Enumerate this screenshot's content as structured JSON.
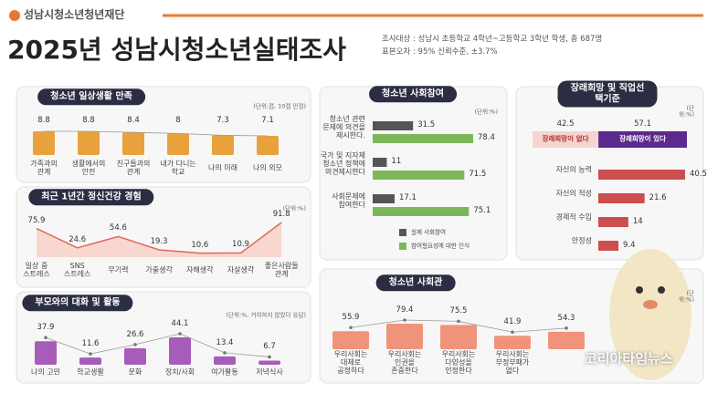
{
  "header": {
    "logo": "성남시청소년청년재단",
    "title": "2025년 성남시청소년실태조사",
    "notes": [
      "조사대상 : 성남시 초등학교 4학년~고등학교 3학년 학생, 총 687명",
      "표본오차 : 95% 신뢰수준, ±3.7%"
    ],
    "watermark": "코리아타임뉴스"
  },
  "chart_data": [
    {
      "type": "bar",
      "title": "청소년 일상생활 만족",
      "unit": "(단위:점, 10점 만점)",
      "categories": [
        "가족과의\n관계",
        "생활에서의\n안전",
        "친구들과의\n관계",
        "내가 다니는\n학교",
        "나의 미래",
        "나의 외모"
      ],
      "values": [
        8.8,
        8.8,
        8.4,
        8,
        7.3,
        7.1
      ],
      "color": "#e9a23b"
    },
    {
      "type": "area",
      "title": "최근 1년간 정신건강 경험",
      "unit": "(단위:%)",
      "categories": [
        "일상 중\n스트레스",
        "SNS\n스트레스",
        "무기력",
        "가출생각",
        "자해생각",
        "자살생각",
        "좋은사람들\n관계"
      ],
      "values": [
        75.9,
        24.6,
        54.6,
        19.3,
        10.6,
        10.9,
        91.8
      ],
      "color": "#e06a5a"
    },
    {
      "type": "bar",
      "title": "부모와의 대화 및 활동",
      "unit": "(단위:%, 거의하지 않았다 응답)",
      "categories": [
        "나의 고민",
        "학교생활",
        "문화",
        "정치/사회",
        "여가활동",
        "저녁식사"
      ],
      "values": [
        37.9,
        11.6,
        26.6,
        44.1,
        13.4,
        6.7
      ],
      "color": "#a65cb8"
    },
    {
      "type": "hbar",
      "title": "청소년 사회참여",
      "unit": "(단위:%)",
      "categories": [
        "청소년 관련\n문제에 의견을\n제시한다.",
        "국가 및 지자체\n청소년 정책에\n의견제시한다",
        "사회문제에\n참여한다"
      ],
      "series": [
        {
          "name": "실제 사회참여",
          "color": "#555555",
          "values": [
            31.5,
            11,
            17.1
          ]
        },
        {
          "name": "참여필요성에 대한 인식",
          "color": "#7cb85a",
          "values": [
            78.4,
            71.5,
            75.1
          ]
        }
      ]
    },
    {
      "type": "stacked",
      "title": "장래희망 및 직업선택기준",
      "unit": "(단위:%)",
      "categories": [
        "장래희망이 없다",
        "장래희망이 있다"
      ],
      "values": [
        42.5,
        57.1
      ],
      "colors": [
        "#f6d4cf",
        "#5b2a8c"
      ]
    },
    {
      "type": "hbar",
      "categories": [
        "자신의 능력",
        "자신의 적성",
        "경제적 수입",
        "안정성"
      ],
      "series": [
        {
          "color": "#cc4e4e",
          "values": [
            40.5,
            21.6,
            14,
            9.4
          ]
        }
      ]
    },
    {
      "type": "bar",
      "title": "청소년 사회관",
      "unit": "(단위:%)",
      "categories": [
        "우리사회는\n대체로\n공정하다",
        "우리사회는\n인권을\n존중한다",
        "우리사회는\n다양성을\n인정한다",
        "우리사회는\n부정부패가\n없다",
        null
      ],
      "values": [
        55.9,
        79.4,
        75.5,
        41.9,
        54.3
      ],
      "color": "#f0937b"
    }
  ]
}
